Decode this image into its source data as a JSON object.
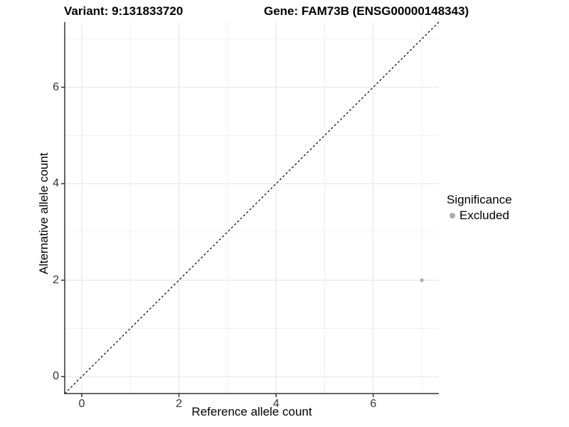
{
  "figure": {
    "title_left": "Variant: 9:131833720",
    "title_right": "Gene: FAM73B (ENSG00000148343)"
  },
  "chart_data": {
    "type": "scatter",
    "xlabel": "Reference allele count",
    "ylabel": "Alternative allele count",
    "xlim": [
      -0.35,
      7.35
    ],
    "ylim": [
      -0.35,
      7.35
    ],
    "x_ticks": [
      0,
      2,
      4,
      6
    ],
    "y_ticks": [
      0,
      2,
      4,
      6
    ],
    "x_minor_ticks": [
      1,
      3,
      5,
      7
    ],
    "y_minor_ticks": [
      1,
      3,
      5,
      7
    ],
    "grid": "on",
    "identity_line": {
      "slope": 1,
      "intercept": 0,
      "style": "dashed",
      "color": "#000000"
    },
    "series": [
      {
        "name": "Excluded",
        "color": "#ABABAB",
        "points": [
          {
            "x": 7,
            "y": 2
          }
        ]
      }
    ],
    "legend": {
      "title": "Significance",
      "position": "right",
      "items": [
        {
          "label": "Excluded",
          "color": "#ABABAB"
        }
      ]
    }
  },
  "colors": {
    "grid_major": "#E4E4E4",
    "grid_minor": "#F1F1F1",
    "axis_line": "#333333",
    "tick_text": "#333333"
  }
}
